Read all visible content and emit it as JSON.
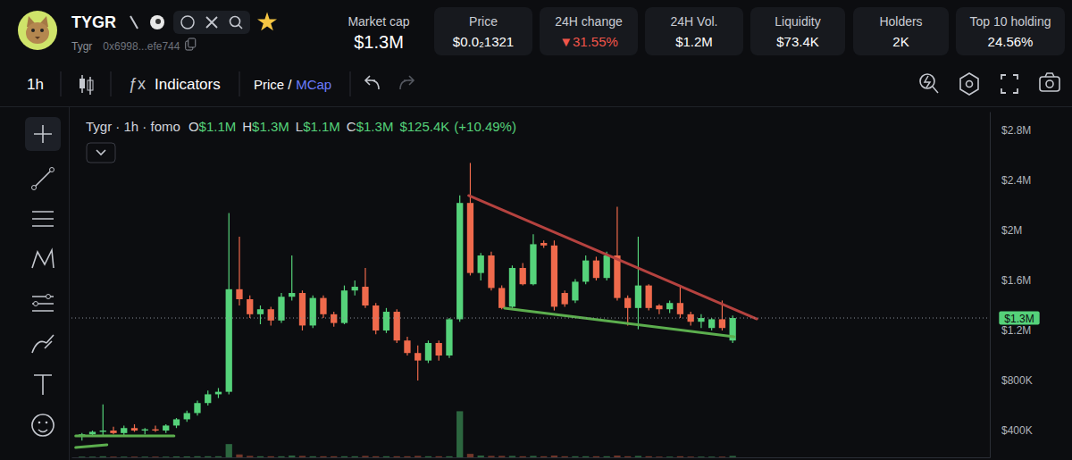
{
  "header": {
    "symbol": "TYGR",
    "name": "Tygr",
    "address": "0x6998...efe744",
    "stats": [
      {
        "label": "Market cap",
        "value": "$1.3M"
      },
      {
        "label": "Price",
        "value": "$0.0₂1321"
      },
      {
        "label": "24H change",
        "value": "▼31.55%"
      },
      {
        "label": "24H Vol.",
        "value": "$1.2M"
      },
      {
        "label": "Liquidity",
        "value": "$73.4K"
      },
      {
        "label": "Holders",
        "value": "2K"
      },
      {
        "label": "Top 10 holding",
        "value": "24.56%"
      }
    ]
  },
  "toolbar": {
    "interval": "1h",
    "indicators_icon": "ƒx",
    "indicators": "Indicators",
    "price": "Price",
    "separator": "/",
    "mcap": "MCap"
  },
  "chart_data": {
    "type": "candlestick",
    "title": "Tygr · 1h · fomo",
    "ohlc": [
      {
        "letter": "O",
        "value": 1100000,
        "label": "$1.1M"
      },
      {
        "letter": "H",
        "value": 1300000,
        "label": "$1.3M"
      },
      {
        "letter": "L",
        "value": 1100000,
        "label": "$1.1M"
      },
      {
        "letter": "C",
        "value": 1300000,
        "label": "$1.3M"
      }
    ],
    "change": {
      "value": 125400,
      "label": "$125.4K"
    },
    "change_percent": {
      "value": 10.49,
      "label": "(+10.49%)"
    },
    "x": [
      0,
      1,
      2,
      3,
      4,
      5,
      6,
      7,
      8,
      9,
      10,
      11,
      12,
      13,
      14,
      15,
      16,
      17,
      18,
      19,
      20,
      21,
      22,
      23,
      24,
      25,
      26,
      27,
      28,
      29,
      30,
      31,
      32,
      33,
      34,
      35,
      36,
      37,
      38,
      39,
      40,
      41,
      42,
      43,
      44,
      45,
      46,
      47,
      48,
      49,
      50,
      51,
      52,
      53,
      54,
      55,
      56,
      57,
      58,
      59,
      60,
      61,
      62
    ],
    "series": [
      {
        "type": "candlestick",
        "open": [
          350000,
          370000,
          390000,
          400000,
          380000,
          420000,
          400000,
          410000,
          400000,
          440000,
          490000,
          540000,
          620000,
          690000,
          710000,
          1530000,
          1450000,
          1330000,
          1370000,
          1280000,
          1470000,
          1500000,
          1240000,
          1460000,
          1330000,
          1260000,
          1520000,
          1550000,
          1400000,
          1200000,
          1350000,
          1120000,
          1020000,
          960000,
          1100000,
          1000000,
          1290000,
          2220000,
          1660000,
          1800000,
          1540000,
          1390000,
          1700000,
          1570000,
          1900000,
          1880000,
          1500000,
          1440000,
          1590000,
          1760000,
          1620000,
          1800000,
          1460000,
          1380000,
          1560000,
          1400000,
          1370000,
          1420000,
          1330000,
          1270000,
          1220000,
          1290000,
          1120000
        ],
        "high": [
          380000,
          400000,
          610000,
          430000,
          440000,
          450000,
          420000,
          440000,
          450000,
          500000,
          560000,
          640000,
          720000,
          740000,
          2140000,
          1950000,
          1480000,
          1400000,
          1390000,
          1500000,
          1800000,
          1520000,
          1480000,
          1480000,
          1350000,
          1560000,
          1600000,
          1700000,
          1420000,
          1380000,
          1370000,
          1150000,
          1080000,
          1120000,
          1120000,
          1300000,
          2280000,
          2540000,
          1820000,
          1830000,
          1560000,
          1720000,
          1740000,
          1970000,
          1920000,
          1920000,
          1520000,
          1610000,
          1800000,
          1790000,
          1830000,
          2190000,
          1480000,
          1950000,
          1570000,
          1410000,
          1440000,
          1560000,
          1350000,
          1330000,
          1300000,
          1440000,
          1320000
        ],
        "low": [
          320000,
          350000,
          360000,
          370000,
          360000,
          390000,
          370000,
          390000,
          380000,
          420000,
          470000,
          520000,
          600000,
          660000,
          690000,
          1400000,
          1300000,
          1250000,
          1240000,
          1260000,
          1440000,
          1200000,
          1220000,
          1300000,
          1230000,
          1250000,
          1480000,
          1380000,
          1170000,
          1180000,
          1100000,
          1000000,
          800000,
          940000,
          960000,
          980000,
          1270000,
          1640000,
          1600000,
          1520000,
          1370000,
          1380000,
          1560000,
          1560000,
          1860000,
          1360000,
          1390000,
          1420000,
          1570000,
          1600000,
          1600000,
          1440000,
          1240000,
          1210000,
          1360000,
          1330000,
          1340000,
          1300000,
          1240000,
          1220000,
          1200000,
          1200000,
          1100000
        ],
        "close": [
          370000,
          390000,
          400000,
          380000,
          420000,
          400000,
          410000,
          400000,
          440000,
          490000,
          540000,
          620000,
          690000,
          710000,
          1530000,
          1450000,
          1330000,
          1370000,
          1280000,
          1470000,
          1500000,
          1240000,
          1460000,
          1330000,
          1260000,
          1520000,
          1550000,
          1400000,
          1200000,
          1350000,
          1120000,
          1020000,
          960000,
          1100000,
          1000000,
          1290000,
          2220000,
          1660000,
          1800000,
          1540000,
          1380000,
          1700000,
          1570000,
          1890000,
          1880000,
          1390000,
          1410000,
          1590000,
          1760000,
          1620000,
          1800000,
          1460000,
          1380000,
          1560000,
          1380000,
          1370000,
          1420000,
          1330000,
          1270000,
          1300000,
          1290000,
          1220000,
          1300000
        ]
      },
      {
        "type": "bar",
        "axis": "y2",
        "values": [
          600,
          600,
          900,
          600,
          600,
          600,
          600,
          600,
          600,
          800,
          800,
          900,
          900,
          900,
          11500,
          2500,
          1200,
          900,
          900,
          900,
          1500,
          1200,
          900,
          900,
          900,
          900,
          900,
          1200,
          900,
          900,
          900,
          900,
          1200,
          900,
          900,
          900,
          40000,
          3000,
          1500,
          1200,
          1200,
          1200,
          900,
          1200,
          900,
          1500,
          900,
          900,
          900,
          900,
          900,
          1500,
          900,
          1200,
          900,
          600,
          600,
          900,
          600,
          600,
          600,
          600,
          1200
        ]
      }
    ],
    "trend_lines": [
      {
        "color": "#b5423f",
        "x": [
          36.85,
          64.3
        ],
        "values": [
          2279000,
          1293000
        ]
      },
      {
        "color": "#5cae4e",
        "x": [
          40.26,
          62.13
        ],
        "values": [
          1379000,
          1150000
        ]
      },
      {
        "color": "#5cae4e",
        "x": [
          -0.6,
          8.77
        ],
        "values": [
          357000,
          357000
        ]
      },
      {
        "color": "#5cae4e",
        "x": [
          -0.6,
          2.38
        ],
        "values": [
          264000,
          286000
        ]
      }
    ],
    "price_line": {
      "value": 1300000,
      "label": "$1.3M"
    },
    "xlim": [
      -1,
      86.5
    ],
    "xticks": [],
    "ylim": [
      186000,
      2950000
    ],
    "yticks": [
      {
        "value": 400000,
        "label": "$400K"
      },
      {
        "value": 800000,
        "label": "$800K"
      },
      {
        "value": 1200000,
        "label": "$1.2M"
      },
      {
        "value": 1600000,
        "label": "$1.6M"
      },
      {
        "value": 2000000,
        "label": "$2M"
      },
      {
        "value": 2400000,
        "label": "$2.4M"
      },
      {
        "value": 2800000,
        "label": "$2.8M"
      }
    ],
    "y2lim": [
      0,
      300000
    ],
    "grid": false,
    "tick_labels": "y"
  }
}
